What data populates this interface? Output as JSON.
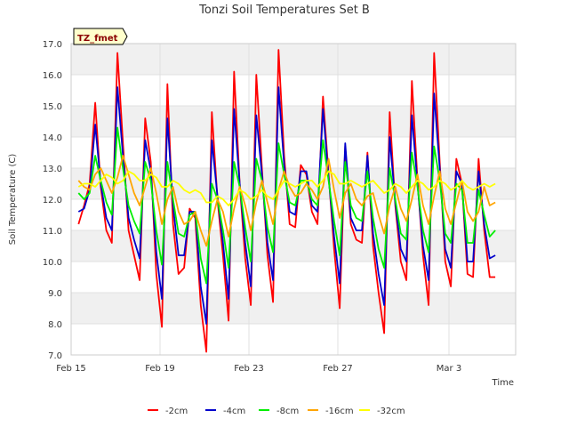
{
  "chart_data": {
    "type": "line",
    "title": "Tonzi Soil Temperatures Set B",
    "xlabel": "Time",
    "ylabel": "Soil Temperature (C)",
    "badge": "TZ_fmet",
    "ylim": [
      7.0,
      17.0
    ],
    "xlim": [
      "2012-02-15",
      "2012-03-06"
    ],
    "yticks": [
      "7.0",
      "8.0",
      "9.0",
      "10.0",
      "11.0",
      "12.0",
      "13.0",
      "14.0",
      "15.0",
      "16.0",
      "17.0"
    ],
    "xticks": [
      {
        "label": "Feb 15",
        "date": "2012-02-15"
      },
      {
        "label": "Feb 19",
        "date": "2012-02-19"
      },
      {
        "label": "Feb 23",
        "date": "2012-02-23"
      },
      {
        "label": "Feb 27",
        "date": "2012-02-27"
      },
      {
        "label": "Mar 3",
        "date": "2012-03-03"
      }
    ],
    "grid": true,
    "band_fill": "#f0f0f0",
    "legend_position": "bottom",
    "series": [
      {
        "name": "-2cm",
        "color": "#ff0000",
        "x": [
          "2012-02-15 08:00",
          "2012-02-15 14:00",
          "2012-02-15 20:00",
          "2012-02-16 02:00",
          "2012-02-16 08:00",
          "2012-02-16 14:00",
          "2012-02-16 20:00",
          "2012-02-17 02:00",
          "2012-02-17 08:00",
          "2012-02-17 14:00",
          "2012-02-17 20:00",
          "2012-02-18 02:00",
          "2012-02-18 08:00",
          "2012-02-18 14:00",
          "2012-02-18 20:00",
          "2012-02-19 02:00",
          "2012-02-19 08:00",
          "2012-02-19 14:00",
          "2012-02-19 20:00",
          "2012-02-20 02:00",
          "2012-02-20 08:00",
          "2012-02-20 14:00",
          "2012-02-20 20:00",
          "2012-02-21 02:00",
          "2012-02-21 08:00",
          "2012-02-21 14:00",
          "2012-02-21 20:00",
          "2012-02-22 02:00",
          "2012-02-22 08:00",
          "2012-02-22 14:00",
          "2012-02-22 20:00",
          "2012-02-23 02:00",
          "2012-02-23 08:00",
          "2012-02-23 14:00",
          "2012-02-23 20:00",
          "2012-02-24 02:00",
          "2012-02-24 08:00",
          "2012-02-24 14:00",
          "2012-02-24 20:00",
          "2012-02-25 02:00",
          "2012-02-25 08:00",
          "2012-02-25 14:00",
          "2012-02-25 20:00",
          "2012-02-26 02:00",
          "2012-02-26 08:00",
          "2012-02-26 14:00",
          "2012-02-26 20:00",
          "2012-02-27 02:00",
          "2012-02-27 08:00",
          "2012-02-27 14:00",
          "2012-02-27 20:00",
          "2012-02-28 02:00",
          "2012-02-28 08:00",
          "2012-02-28 14:00",
          "2012-02-28 20:00",
          "2012-02-29 02:00",
          "2012-02-29 08:00",
          "2012-02-29 14:00",
          "2012-02-29 20:00",
          "2012-03-01 02:00",
          "2012-03-01 08:00",
          "2012-03-01 14:00",
          "2012-03-01 20:00",
          "2012-03-02 02:00",
          "2012-03-02 08:00",
          "2012-03-02 14:00",
          "2012-03-02 20:00",
          "2012-03-03 02:00",
          "2012-03-03 08:00",
          "2012-03-03 14:00",
          "2012-03-03 20:00",
          "2012-03-04 02:00",
          "2012-03-04 08:00",
          "2012-03-04 14:00",
          "2012-03-04 20:00",
          "2012-03-05 02:00"
        ],
        "y": [
          11.2,
          11.8,
          12.5,
          15.1,
          12.4,
          11.0,
          10.6,
          16.7,
          13.8,
          11.0,
          10.2,
          9.4,
          14.6,
          13.2,
          9.6,
          7.9,
          15.7,
          11.2,
          9.6,
          9.8,
          11.7,
          11.4,
          8.6,
          7.1,
          14.8,
          12.0,
          10.2,
          8.1,
          16.1,
          12.5,
          10.1,
          8.6,
          16.0,
          13.0,
          10.2,
          8.7,
          16.8,
          13.4,
          11.2,
          11.1,
          13.1,
          12.8,
          11.6,
          11.2,
          15.3,
          12.8,
          10.4,
          8.5,
          13.7,
          11.2,
          10.7,
          10.6,
          13.5,
          10.5,
          9.0,
          7.7,
          14.8,
          11.8,
          10.0,
          9.4,
          15.8,
          12.6,
          10.2,
          8.6,
          16.7,
          13.2,
          10.0,
          9.2,
          13.3,
          12.5,
          9.6,
          9.5,
          13.3,
          11.0,
          9.5,
          9.5
        ]
      },
      {
        "name": "-4cm",
        "color": "#0000cc",
        "x": [
          "2012-02-15 08:00",
          "2012-02-15 14:00",
          "2012-02-15 20:00",
          "2012-02-16 02:00",
          "2012-02-16 08:00",
          "2012-02-16 14:00",
          "2012-02-16 20:00",
          "2012-02-17 02:00",
          "2012-02-17 08:00",
          "2012-02-17 14:00",
          "2012-02-17 20:00",
          "2012-02-18 02:00",
          "2012-02-18 08:00",
          "2012-02-18 14:00",
          "2012-02-18 20:00",
          "2012-02-19 02:00",
          "2012-02-19 08:00",
          "2012-02-19 14:00",
          "2012-02-19 20:00",
          "2012-02-20 02:00",
          "2012-02-20 08:00",
          "2012-02-20 14:00",
          "2012-02-20 20:00",
          "2012-02-21 02:00",
          "2012-02-21 08:00",
          "2012-02-21 14:00",
          "2012-02-21 20:00",
          "2012-02-22 02:00",
          "2012-02-22 08:00",
          "2012-02-22 14:00",
          "2012-02-22 20:00",
          "2012-02-23 02:00",
          "2012-02-23 08:00",
          "2012-02-23 14:00",
          "2012-02-23 20:00",
          "2012-02-24 02:00",
          "2012-02-24 08:00",
          "2012-02-24 14:00",
          "2012-02-24 20:00",
          "2012-02-25 02:00",
          "2012-02-25 08:00",
          "2012-02-25 14:00",
          "2012-02-25 20:00",
          "2012-02-26 02:00",
          "2012-02-26 08:00",
          "2012-02-26 14:00",
          "2012-02-26 20:00",
          "2012-02-27 02:00",
          "2012-02-27 08:00",
          "2012-02-27 14:00",
          "2012-02-27 20:00",
          "2012-02-28 02:00",
          "2012-02-28 08:00",
          "2012-02-28 14:00",
          "2012-02-28 20:00",
          "2012-02-29 02:00",
          "2012-02-29 08:00",
          "2012-02-29 14:00",
          "2012-02-29 20:00",
          "2012-03-01 02:00",
          "2012-03-01 08:00",
          "2012-03-01 14:00",
          "2012-03-01 20:00",
          "2012-03-02 02:00",
          "2012-03-02 08:00",
          "2012-03-02 14:00",
          "2012-03-02 20:00",
          "2012-03-03 02:00",
          "2012-03-03 08:00",
          "2012-03-03 14:00",
          "2012-03-03 20:00",
          "2012-03-04 02:00",
          "2012-03-04 08:00",
          "2012-03-04 14:00",
          "2012-03-04 20:00",
          "2012-03-05 02:00"
        ],
        "y": [
          11.6,
          11.7,
          12.3,
          14.4,
          12.5,
          11.4,
          11.0,
          15.6,
          13.4,
          11.4,
          10.7,
          10.1,
          13.9,
          12.9,
          10.3,
          8.8,
          14.6,
          11.8,
          10.2,
          10.2,
          11.6,
          11.6,
          9.2,
          8.0,
          13.9,
          12.1,
          10.6,
          8.8,
          14.9,
          12.5,
          10.6,
          9.2,
          14.7,
          12.8,
          10.6,
          9.4,
          15.6,
          13.1,
          11.6,
          11.5,
          12.9,
          12.9,
          11.8,
          11.6,
          14.9,
          12.7,
          10.8,
          9.3,
          13.8,
          11.4,
          11.0,
          11.0,
          13.4,
          10.9,
          9.6,
          8.6,
          14.0,
          11.9,
          10.4,
          10.0,
          14.7,
          12.5,
          10.5,
          9.4,
          15.4,
          13.0,
          10.4,
          9.8,
          12.9,
          12.5,
          10.0,
          10.0,
          12.9,
          11.2,
          10.1,
          10.2
        ]
      },
      {
        "name": "-8cm",
        "color": "#00ee00",
        "x": [
          "2012-02-15 08:00",
          "2012-02-15 14:00",
          "2012-02-15 20:00",
          "2012-02-16 02:00",
          "2012-02-16 08:00",
          "2012-02-16 14:00",
          "2012-02-16 20:00",
          "2012-02-17 02:00",
          "2012-02-17 08:00",
          "2012-02-17 14:00",
          "2012-02-17 20:00",
          "2012-02-18 02:00",
          "2012-02-18 08:00",
          "2012-02-18 14:00",
          "2012-02-18 20:00",
          "2012-02-19 02:00",
          "2012-02-19 08:00",
          "2012-02-19 14:00",
          "2012-02-19 20:00",
          "2012-02-20 02:00",
          "2012-02-20 08:00",
          "2012-02-20 14:00",
          "2012-02-20 20:00",
          "2012-02-21 02:00",
          "2012-02-21 08:00",
          "2012-02-21 14:00",
          "2012-02-21 20:00",
          "2012-02-22 02:00",
          "2012-02-22 08:00",
          "2012-02-22 14:00",
          "2012-02-22 20:00",
          "2012-02-23 02:00",
          "2012-02-23 08:00",
          "2012-02-23 14:00",
          "2012-02-23 20:00",
          "2012-02-24 02:00",
          "2012-02-24 08:00",
          "2012-02-24 14:00",
          "2012-02-24 20:00",
          "2012-02-25 02:00",
          "2012-02-25 08:00",
          "2012-02-25 14:00",
          "2012-02-25 20:00",
          "2012-02-26 02:00",
          "2012-02-26 08:00",
          "2012-02-26 14:00",
          "2012-02-26 20:00",
          "2012-02-27 02:00",
          "2012-02-27 08:00",
          "2012-02-27 14:00",
          "2012-02-27 20:00",
          "2012-02-28 02:00",
          "2012-02-28 08:00",
          "2012-02-28 14:00",
          "2012-02-28 20:00",
          "2012-02-29 02:00",
          "2012-02-29 08:00",
          "2012-02-29 14:00",
          "2012-02-29 20:00",
          "2012-03-01 02:00",
          "2012-03-01 08:00",
          "2012-03-01 14:00",
          "2012-03-01 20:00",
          "2012-03-02 02:00",
          "2012-03-02 08:00",
          "2012-03-02 14:00",
          "2012-03-02 20:00",
          "2012-03-03 02:00",
          "2012-03-03 08:00",
          "2012-03-03 14:00",
          "2012-03-03 20:00",
          "2012-03-04 02:00",
          "2012-03-04 08:00",
          "2012-03-04 14:00",
          "2012-03-04 20:00",
          "2012-03-05 02:00"
        ],
        "y": [
          12.2,
          12.0,
          12.2,
          13.4,
          12.6,
          11.9,
          11.5,
          14.3,
          13.0,
          11.8,
          11.3,
          10.9,
          13.2,
          12.6,
          11.0,
          9.9,
          13.2,
          12.0,
          10.9,
          10.8,
          11.5,
          11.6,
          10.1,
          9.3,
          12.5,
          12.0,
          11.0,
          9.8,
          13.2,
          12.4,
          11.1,
          10.0,
          13.3,
          12.6,
          11.1,
          10.3,
          13.8,
          12.8,
          11.9,
          11.8,
          12.6,
          12.6,
          12.0,
          11.8,
          13.9,
          12.6,
          11.3,
          10.2,
          13.2,
          11.8,
          11.4,
          11.3,
          12.9,
          11.4,
          10.4,
          9.8,
          13.0,
          12.0,
          10.9,
          10.7,
          13.5,
          12.4,
          11.0,
          10.3,
          13.7,
          12.6,
          10.9,
          10.6,
          12.5,
          12.3,
          10.6,
          10.6,
          12.3,
          11.5,
          10.8,
          11.0
        ]
      },
      {
        "name": "-16cm",
        "color": "#ffa500",
        "x": [
          "2012-02-15 08:00",
          "2012-02-15 14:00",
          "2012-02-15 20:00",
          "2012-02-16 02:00",
          "2012-02-16 08:00",
          "2012-02-16 14:00",
          "2012-02-16 20:00",
          "2012-02-17 02:00",
          "2012-02-17 08:00",
          "2012-02-17 14:00",
          "2012-02-17 20:00",
          "2012-02-18 02:00",
          "2012-02-18 08:00",
          "2012-02-18 14:00",
          "2012-02-18 20:00",
          "2012-02-19 02:00",
          "2012-02-19 08:00",
          "2012-02-19 14:00",
          "2012-02-19 20:00",
          "2012-02-20 02:00",
          "2012-02-20 08:00",
          "2012-02-20 14:00",
          "2012-02-20 20:00",
          "2012-02-21 02:00",
          "2012-02-21 08:00",
          "2012-02-21 14:00",
          "2012-02-21 20:00",
          "2012-02-22 02:00",
          "2012-02-22 08:00",
          "2012-02-22 14:00",
          "2012-02-22 20:00",
          "2012-02-23 02:00",
          "2012-02-23 08:00",
          "2012-02-23 14:00",
          "2012-02-23 20:00",
          "2012-02-24 02:00",
          "2012-02-24 08:00",
          "2012-02-24 14:00",
          "2012-02-24 20:00",
          "2012-02-25 02:00",
          "2012-02-25 08:00",
          "2012-02-25 14:00",
          "2012-02-25 20:00",
          "2012-02-26 02:00",
          "2012-02-26 08:00",
          "2012-02-26 14:00",
          "2012-02-26 20:00",
          "2012-02-27 02:00",
          "2012-02-27 08:00",
          "2012-02-27 14:00",
          "2012-02-27 20:00",
          "2012-02-28 02:00",
          "2012-02-28 08:00",
          "2012-02-28 14:00",
          "2012-02-28 20:00",
          "2012-02-29 02:00",
          "2012-02-29 08:00",
          "2012-02-29 14:00",
          "2012-02-29 20:00",
          "2012-03-01 02:00",
          "2012-03-01 08:00",
          "2012-03-01 14:00",
          "2012-03-01 20:00",
          "2012-03-02 02:00",
          "2012-03-02 08:00",
          "2012-03-02 14:00",
          "2012-03-02 20:00",
          "2012-03-03 02:00",
          "2012-03-03 08:00",
          "2012-03-03 14:00",
          "2012-03-03 20:00",
          "2012-03-04 02:00",
          "2012-03-04 08:00",
          "2012-03-04 14:00",
          "2012-03-04 20:00",
          "2012-03-05 02:00"
        ],
        "y": [
          12.6,
          12.4,
          12.3,
          12.8,
          13.0,
          12.6,
          12.2,
          12.7,
          13.4,
          12.8,
          12.2,
          11.8,
          12.4,
          13.0,
          12.2,
          11.2,
          12.0,
          12.4,
          11.6,
          11.2,
          11.3,
          11.6,
          11.0,
          10.5,
          11.3,
          12.0,
          11.6,
          10.8,
          11.7,
          12.4,
          11.8,
          11.0,
          11.9,
          12.6,
          11.9,
          11.2,
          12.3,
          12.9,
          12.4,
          12.1,
          12.2,
          12.5,
          12.3,
          12.0,
          12.4,
          13.3,
          12.3,
          11.4,
          12.2,
          12.5,
          12.0,
          11.8,
          12.1,
          12.2,
          11.5,
          10.9,
          11.8,
          12.4,
          11.7,
          11.3,
          12.0,
          12.8,
          11.8,
          11.2,
          12.1,
          12.9,
          11.7,
          11.2,
          11.9,
          12.6,
          11.6,
          11.3,
          11.6,
          12.4,
          11.8,
          11.9
        ]
      },
      {
        "name": "-32cm",
        "color": "#ffff00",
        "x": [
          "2012-02-15 08:00",
          "2012-02-15 14:00",
          "2012-02-15 20:00",
          "2012-02-16 02:00",
          "2012-02-16 08:00",
          "2012-02-16 14:00",
          "2012-02-16 20:00",
          "2012-02-17 02:00",
          "2012-02-17 08:00",
          "2012-02-17 14:00",
          "2012-02-17 20:00",
          "2012-02-18 02:00",
          "2012-02-18 08:00",
          "2012-02-18 14:00",
          "2012-02-18 20:00",
          "2012-02-19 02:00",
          "2012-02-19 08:00",
          "2012-02-19 14:00",
          "2012-02-19 20:00",
          "2012-02-20 02:00",
          "2012-02-20 08:00",
          "2012-02-20 14:00",
          "2012-02-20 20:00",
          "2012-02-21 02:00",
          "2012-02-21 08:00",
          "2012-02-21 14:00",
          "2012-02-21 20:00",
          "2012-02-22 02:00",
          "2012-02-22 08:00",
          "2012-02-22 14:00",
          "2012-02-22 20:00",
          "2012-02-23 02:00",
          "2012-02-23 08:00",
          "2012-02-23 14:00",
          "2012-02-23 20:00",
          "2012-02-24 02:00",
          "2012-02-24 08:00",
          "2012-02-24 14:00",
          "2012-02-24 20:00",
          "2012-02-25 02:00",
          "2012-02-25 08:00",
          "2012-02-25 14:00",
          "2012-02-25 20:00",
          "2012-02-26 02:00",
          "2012-02-26 08:00",
          "2012-02-26 14:00",
          "2012-02-26 20:00",
          "2012-02-27 02:00",
          "2012-02-27 08:00",
          "2012-02-27 14:00",
          "2012-02-27 20:00",
          "2012-02-28 02:00",
          "2012-02-28 08:00",
          "2012-02-28 14:00",
          "2012-02-28 20:00",
          "2012-02-29 02:00",
          "2012-02-29 08:00",
          "2012-02-29 14:00",
          "2012-02-29 20:00",
          "2012-03-01 02:00",
          "2012-03-01 08:00",
          "2012-03-01 14:00",
          "2012-03-01 20:00",
          "2012-03-02 02:00",
          "2012-03-02 08:00",
          "2012-03-02 14:00",
          "2012-03-02 20:00",
          "2012-03-03 02:00",
          "2012-03-03 08:00",
          "2012-03-03 14:00",
          "2012-03-03 20:00",
          "2012-03-04 02:00",
          "2012-03-04 08:00",
          "2012-03-04 14:00",
          "2012-03-04 20:00",
          "2012-03-05 02:00"
        ],
        "y": [
          12.4,
          12.5,
          12.5,
          12.4,
          12.6,
          12.8,
          12.7,
          12.5,
          12.6,
          12.9,
          12.8,
          12.6,
          12.6,
          12.8,
          12.7,
          12.4,
          12.4,
          12.6,
          12.5,
          12.3,
          12.2,
          12.3,
          12.2,
          11.9,
          11.9,
          12.1,
          12.0,
          11.8,
          12.0,
          12.3,
          12.2,
          12.0,
          12.1,
          12.3,
          12.1,
          12.0,
          12.3,
          12.6,
          12.5,
          12.4,
          12.5,
          12.6,
          12.6,
          12.4,
          12.6,
          12.9,
          12.8,
          12.5,
          12.5,
          12.6,
          12.5,
          12.4,
          12.5,
          12.6,
          12.4,
          12.2,
          12.3,
          12.5,
          12.4,
          12.2,
          12.4,
          12.6,
          12.5,
          12.3,
          12.4,
          12.6,
          12.5,
          12.3,
          12.4,
          12.6,
          12.4,
          12.3,
          12.4,
          12.5,
          12.4,
          12.5
        ]
      }
    ]
  }
}
